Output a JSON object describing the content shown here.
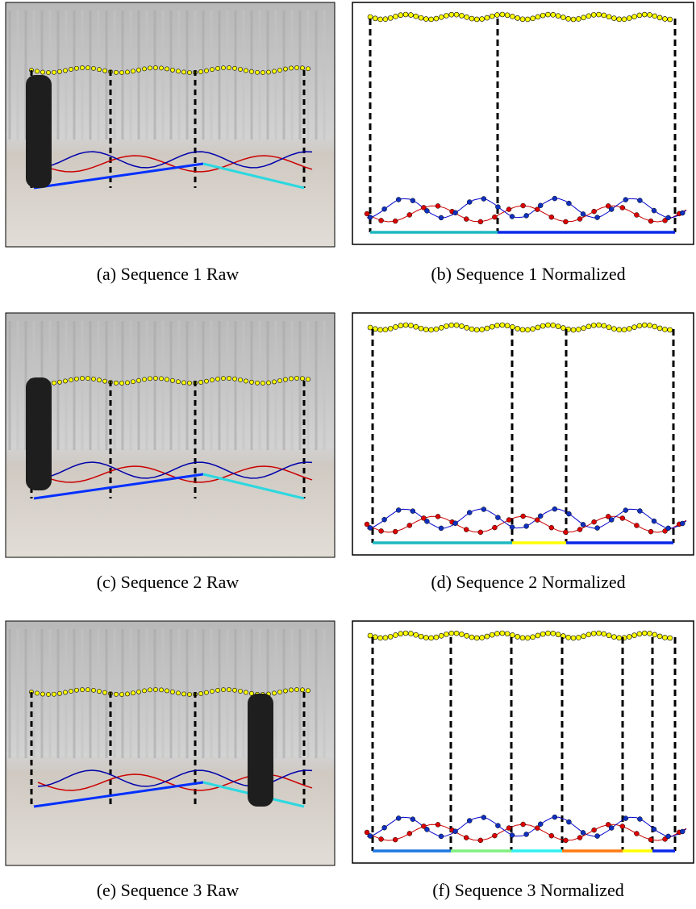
{
  "figure": {
    "captions": [
      "(a) Sequence 1 Raw",
      "(b) Sequence 1 Normalized",
      "(c) Sequence 2 Raw",
      "(d) Sequence 2 Normalized",
      "(e) Sequence 3 Raw",
      "(f) Sequence 3 Normalized"
    ]
  }
}
